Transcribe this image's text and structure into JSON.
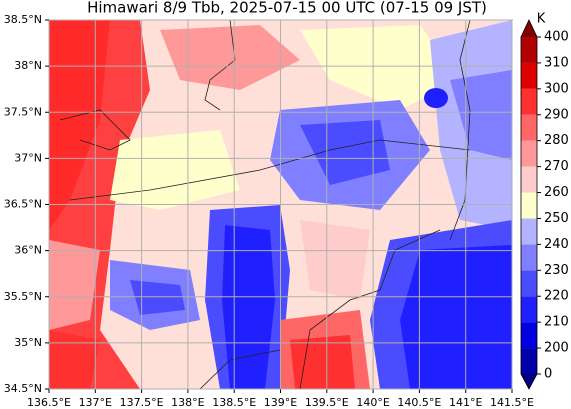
{
  "chart_data": {
    "type": "map",
    "title": "Himawari 8/9 Tbb, 2025-07-15 00 UTC (07-15 09 JST)",
    "xlim": [
      136.5,
      141.5
    ],
    "ylim": [
      34.5,
      38.5
    ],
    "xticks": [
      {
        "value": 136.5,
        "label": "136.5°E"
      },
      {
        "value": 137,
        "label": "137°E"
      },
      {
        "value": 137.5,
        "label": "137.5°E"
      },
      {
        "value": 138,
        "label": "138°E"
      },
      {
        "value": 138.5,
        "label": "138.5°E"
      },
      {
        "value": 139,
        "label": "139°E"
      },
      {
        "value": 139.5,
        "label": "139.5°E"
      },
      {
        "value": 140,
        "label": "140°E"
      },
      {
        "value": 140.5,
        "label": "140.5°E"
      },
      {
        "value": 141,
        "label": "141°E"
      },
      {
        "value": 141.5,
        "label": "141.5°E"
      }
    ],
    "yticks": [
      {
        "value": 34.5,
        "label": "34.5°N"
      },
      {
        "value": 35,
        "label": "35°N"
      },
      {
        "value": 35.5,
        "label": "35.5°N"
      },
      {
        "value": 36,
        "label": "36°N"
      },
      {
        "value": 36.5,
        "label": "36.5°N"
      },
      {
        "value": 37,
        "label": "37°N"
      },
      {
        "value": 37.5,
        "label": "37.5°N"
      },
      {
        "value": 38,
        "label": "38°N"
      },
      {
        "value": 38.5,
        "label": "38.5°N"
      }
    ],
    "grid": true,
    "colorbar": {
      "unit": "K",
      "levels": [
        0,
        200,
        210,
        220,
        230,
        240,
        250,
        260,
        270,
        280,
        290,
        300,
        310,
        400
      ],
      "colors": [
        "#0000a8",
        "#0000e0",
        "#2020ff",
        "#4c4cff",
        "#7f7fff",
        "#b3b3ff",
        "#ffffcc",
        "#ffcccc",
        "#ff9999",
        "#ff6666",
        "#ff3030",
        "#e00000",
        "#b00000"
      ],
      "under_color": "#000080",
      "over_color": "#800000"
    }
  }
}
